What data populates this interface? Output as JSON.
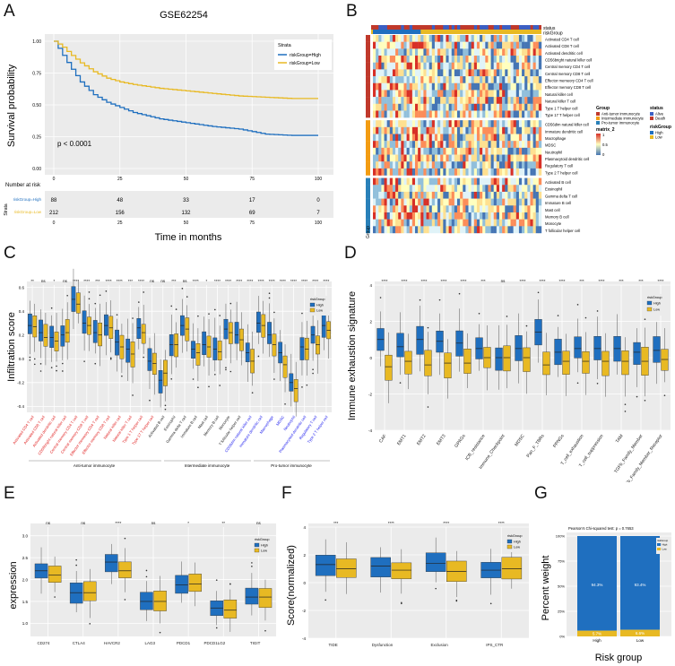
{
  "panels": {
    "A": "A",
    "B": "B",
    "C": "C",
    "D": "D",
    "E": "E",
    "F": "F",
    "G": "G"
  },
  "colors": {
    "high": "#1f6fbf",
    "low": "#e8b923",
    "red_label": "#e02020",
    "blue_label": "#2222ee"
  },
  "survival": {
    "title": "GSE62254",
    "ylabel": "Survival probability",
    "xlabel": "Time in months",
    "pvalue": "p < 0.0001",
    "legend_title": "Strata",
    "legend_high": "riskGroup=High",
    "legend_low": "riskGroup=Low",
    "yticks": [
      "1.00",
      "0.75",
      "0.50",
      "0.25",
      "0.00"
    ],
    "xticks": [
      "0",
      "25",
      "50",
      "75",
      "100"
    ],
    "risk_title": "Number at risk",
    "risk_side": "Strata",
    "risk_high_label": "riskGroup=High",
    "risk_low_label": "riskGroup=Low",
    "risk_high": [
      "88",
      "48",
      "33",
      "17",
      "0"
    ],
    "risk_low": [
      "212",
      "156",
      "132",
      "69",
      "7"
    ]
  },
  "chart_data": [
    {
      "type": "line",
      "title": "GSE62254",
      "xlabel": "Time in months",
      "ylabel": "Survival probability",
      "ylim": [
        0,
        1
      ],
      "xlim": [
        0,
        100
      ],
      "series": [
        {
          "name": "riskGroup=High",
          "x": [
            0,
            3,
            6,
            10,
            15,
            20,
            25,
            30,
            40,
            50,
            60,
            70,
            80,
            90,
            100
          ],
          "y": [
            1.0,
            0.9,
            0.8,
            0.68,
            0.58,
            0.52,
            0.48,
            0.44,
            0.39,
            0.36,
            0.33,
            0.31,
            0.27,
            0.26,
            0.26
          ]
        },
        {
          "name": "riskGroup=Low",
          "x": [
            0,
            3,
            6,
            10,
            15,
            20,
            25,
            30,
            40,
            50,
            60,
            70,
            80,
            90,
            100
          ],
          "y": [
            1.0,
            0.96,
            0.9,
            0.83,
            0.76,
            0.71,
            0.68,
            0.66,
            0.63,
            0.61,
            0.59,
            0.57,
            0.56,
            0.55,
            0.55
          ]
        }
      ]
    },
    {
      "type": "heatmap",
      "groups": [
        "Anti-tumor immunocyte",
        "Intermediate immunocyte",
        "Pro-tumor immunocyte"
      ],
      "rows": [
        "Activated CD4 T cell",
        "Activated CD8 T cell",
        "Activated dendritic cell",
        "CD56bright natural killer cell",
        "Central memory CD4 T cell",
        "Central memory CD8 T cell",
        "Effector memeory CD4 T cell",
        "Effector memory CD8 T cell",
        "Natural killer cell",
        "Natural killer T cell",
        "Type 1 T helper cell",
        "Type 17 T helper cell",
        "CD56dim natural killer cell",
        "Immature dendritic cell",
        "Macrophage",
        "MDSC",
        "Neutrophil",
        "Plasmacytoid dendritic cell",
        "Regulatory T cell",
        "Type 2 T helper cell",
        "Activated B cell",
        "Eosinophil",
        "Gamma delta T cell",
        "Immature B cell",
        "Mast cell",
        "Memory B cell",
        "Monocyte",
        "T follicular helper cell"
      ]
    },
    {
      "type": "bar",
      "title": "Infiltration score",
      "ylabel": "Infiltration score",
      "ylim": [
        -0.45,
        0.62
      ],
      "categories": [
        "Activated CD4 T cell",
        "Activated CD8 T cell",
        "Activated dendritic cell",
        "CD56bright natural killer cell",
        "Central memory CD4 T cell",
        "Central memory CD8 T cell",
        "Effector memeory CD4 T cell",
        "Effector memory CD8 T cell",
        "Natural killer cell",
        "Natural killer T cell",
        "Type 1 T helper cell",
        "Type 17 T helper cell",
        "Activated B cell",
        "Eosinophil",
        "Gamma delta T cell",
        "Immature B cell",
        "Mast cell",
        "Memory B cell",
        "Monocyte",
        "T follicular helper cell",
        "CD56dim natural killer cell",
        "Immature dendritic cell",
        "Macrophage",
        "MDSC",
        "Neutrophil",
        "Plasmacytoid dendritic cell",
        "Regulatory T cell",
        "Type 2 T helper cell"
      ],
      "series": [
        {
          "name": "High",
          "values": [
            0.28,
            0.22,
            0.18,
            0.2,
            0.5,
            0.3,
            0.22,
            0.28,
            0.14,
            0.08,
            0.26,
            -0.02,
            -0.18,
            0.12,
            0.28,
            0.08,
            0.12,
            0.08,
            0.25,
            0.2,
            0.05,
            0.3,
            0.2,
            0.05,
            -0.2,
            0.1,
            0.2,
            0.28
          ]
        },
        {
          "name": "Low",
          "values": [
            0.27,
            0.18,
            0.15,
            0.22,
            0.46,
            0.28,
            0.2,
            0.26,
            0.1,
            0.04,
            0.22,
            -0.04,
            -0.12,
            0.12,
            0.25,
            0.05,
            0.1,
            0.06,
            0.22,
            0.16,
            -0.02,
            0.28,
            0.12,
            -0.05,
            -0.25,
            0.08,
            0.12,
            0.24
          ]
        }
      ],
      "significance": [
        "**",
        "ns",
        "*",
        "ns",
        "****",
        "****",
        "***",
        "****",
        "****",
        "***",
        "****",
        "ns",
        "ns",
        "***",
        "ns",
        "****",
        "*",
        "****",
        "****",
        "****",
        "****",
        "****",
        "****",
        "****",
        "****",
        "****",
        "****",
        "****"
      ]
    },
    {
      "type": "bar",
      "ylabel": "Immune exhaustion signature",
      "ylim": [
        -4,
        4
      ],
      "categories": [
        "CAF",
        "EMT1",
        "EMT2",
        "EMT3",
        "GPAGs",
        "ICB_resistance",
        "Immune_Checkpoint",
        "MDSC",
        "Pan_F_TBRs",
        "PPNGs",
        "T_cell_exhaustion",
        "T_cell_suppression",
        "TAM",
        "TGFb_Family_Member",
        "TGFb_Family_Member_Receptor"
      ],
      "series": [
        {
          "name": "High",
          "values": [
            1.0,
            0.6,
            1.0,
            0.9,
            0.8,
            0.5,
            0.0,
            0.5,
            1.4,
            0.3,
            0.5,
            0.5,
            0.5,
            0.3,
            0.4
          ]
        },
        {
          "name": "Low",
          "values": [
            -0.5,
            -0.2,
            -0.4,
            -0.3,
            -0.3,
            0.0,
            0.0,
            0.0,
            -0.4,
            -0.2,
            -0.2,
            -0.2,
            -0.2,
            -0.2,
            -0.1
          ]
        }
      ],
      "significance": [
        "****",
        "****",
        "****",
        "****",
        "****",
        "***",
        "ns",
        "****",
        "****",
        "****",
        "***",
        "****",
        "***",
        "***",
        "****"
      ]
    },
    {
      "type": "bar",
      "ylabel": "expression",
      "ylim": [
        0.7,
        3.2
      ],
      "categories": [
        "CD274",
        "CTLA4",
        "HAVCR2",
        "LAG3",
        "PDCD1",
        "PDCD1LG2",
        "TIGIT"
      ],
      "series": [
        {
          "name": "High",
          "values": [
            2.2,
            1.7,
            2.4,
            1.5,
            1.88,
            1.35,
            1.6
          ]
        },
        {
          "name": "Low",
          "values": [
            2.1,
            1.7,
            2.2,
            1.5,
            1.9,
            1.3,
            1.6
          ]
        }
      ],
      "significance": [
        "ns",
        "ns",
        "****",
        "ns",
        "*",
        "**",
        "ns"
      ]
    },
    {
      "type": "bar",
      "ylabel": "Score(normalized)",
      "ylim": [
        -4,
        4
      ],
      "categories": [
        "TIDE",
        "Dysfunction",
        "Exclusion",
        "IPS_CTR"
      ],
      "series": [
        {
          "name": "High",
          "values": [
            1.3,
            1.2,
            1.4,
            0.9
          ]
        },
        {
          "name": "Low",
          "values": [
            1.0,
            0.9,
            0.8,
            1.0
          ]
        }
      ],
      "significance": [
        "***",
        "****",
        "****",
        "****"
      ]
    },
    {
      "type": "bar",
      "title": "Pearson's Chi-squared test: p = 0.7653",
      "xlabel": "Risk group",
      "ylabel": "Percent weight",
      "categories": [
        "High",
        "Low"
      ],
      "series": [
        {
          "name": "High",
          "values": [
            94.3,
            93.4
          ]
        },
        {
          "name": "Low",
          "values": [
            5.7,
            6.6
          ]
        }
      ]
    }
  ],
  "heatmap": {
    "status_label": "status",
    "risk_label": "riskGroup",
    "group_side": "Group",
    "legend_group_title": "Group",
    "legend_groups": [
      "Anti-tumor immunocyte",
      "Intermediate immunocyte",
      "Pro-tumor immunocyte"
    ],
    "legend_status_title": "status",
    "legend_status": [
      "Alive",
      "Death"
    ],
    "legend_risk_title": "riskGroup",
    "legend_risk": [
      "High",
      "Low"
    ],
    "legend_scale_title": "matrix_2",
    "legend_scale_ticks": [
      "1",
      "0.5",
      "0"
    ]
  },
  "infiltration": {
    "legend_title": "riskGroup",
    "legend_items": [
      "High",
      "Low"
    ],
    "yticks": [
      "0.6",
      "0.4",
      "0.2",
      "0.0",
      "-0.2",
      "-0.4"
    ],
    "group_labels": [
      "Anti-tumor immunocyte",
      "Intermediate immunocyte",
      "Pro-tumor immunocyte"
    ]
  },
  "exhaustion": {
    "legend_title": "riskGroup",
    "legend_items": [
      "High",
      "Low"
    ],
    "yticks": [
      "4",
      "2",
      "0",
      "-2",
      "-4"
    ]
  },
  "expression": {
    "legend_title": "riskGroup",
    "legend_items": [
      "High",
      "Low"
    ],
    "yticks": [
      "3.0",
      "2.5",
      "2.0",
      "1.5",
      "1.0"
    ]
  },
  "tide": {
    "legend_title": "riskGroup",
    "legend_items": [
      "High",
      "Low"
    ],
    "yticks": [
      "4",
      "2",
      "0",
      "-2",
      "-4"
    ]
  },
  "weight": {
    "yticks": [
      "100%",
      "75%",
      "50%",
      "25%",
      "0%"
    ],
    "legend_title": "riskGroup",
    "legend_items": [
      "High",
      "Low"
    ],
    "labels_high": [
      "94.3%",
      "5.7%"
    ],
    "labels_low": [
      "93.4%",
      "6.6%"
    ]
  }
}
